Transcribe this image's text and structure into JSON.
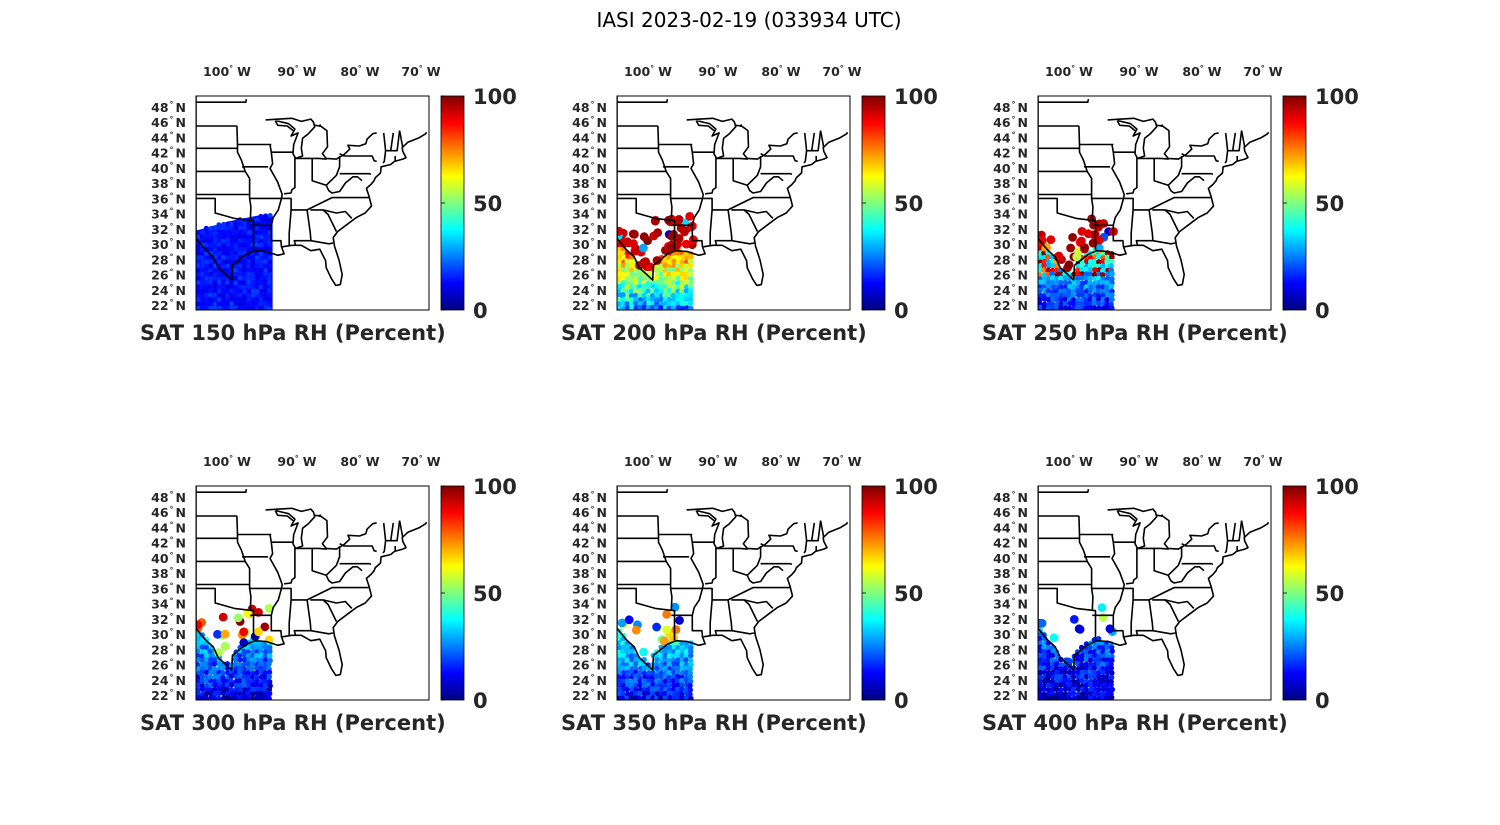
{
  "figure": {
    "title": "IASI 2023-02-19 (033934 UTC)"
  },
  "colors": {
    "jet_stops": [
      "#00007f",
      "#0000ff",
      "#007fff",
      "#00ffff",
      "#7fff7f",
      "#ffff00",
      "#ff7f00",
      "#ff0000",
      "#7f0000"
    ],
    "border": "#000000",
    "tick_text": "#262626"
  },
  "axes": {
    "lon_ticks": [
      {
        "value": -100,
        "label": "100",
        "suffix": "W"
      },
      {
        "value": -90,
        "label": "90",
        "suffix": "W"
      },
      {
        "value": -80,
        "label": "80",
        "suffix": "W"
      },
      {
        "value": -70,
        "label": "70",
        "suffix": "W"
      }
    ],
    "lat_ticks": [
      {
        "value": 48,
        "label": "48",
        "suffix": "N"
      },
      {
        "value": 46,
        "label": "46",
        "suffix": "N"
      },
      {
        "value": 44,
        "label": "44",
        "suffix": "N"
      },
      {
        "value": 42,
        "label": "42",
        "suffix": "N"
      },
      {
        "value": 40,
        "label": "40",
        "suffix": "N"
      },
      {
        "value": 38,
        "label": "38",
        "suffix": "N"
      },
      {
        "value": 36,
        "label": "36",
        "suffix": "N"
      },
      {
        "value": 34,
        "label": "34",
        "suffix": "N"
      },
      {
        "value": 32,
        "label": "32",
        "suffix": "N"
      },
      {
        "value": 30,
        "label": "30",
        "suffix": "N"
      },
      {
        "value": 28,
        "label": "28",
        "suffix": "N"
      },
      {
        "value": 26,
        "label": "26",
        "suffix": "N"
      },
      {
        "value": 24,
        "label": "24",
        "suffix": "N"
      },
      {
        "value": 22,
        "label": "22",
        "suffix": "N"
      }
    ],
    "colorbar_ticks": [
      {
        "value": 100,
        "label": "100"
      },
      {
        "value": 50,
        "label": "50"
      },
      {
        "value": 0,
        "label": "0"
      }
    ]
  },
  "panels": [
    {
      "title": "SAT 150 hPa RH (Percent)",
      "level": 150,
      "wet_fraction": 0.0,
      "mid_fraction": 0.0,
      "base_rh": 14,
      "land_points": 0
    },
    {
      "title": "SAT 200 hPa RH (Percent)",
      "level": 200,
      "wet_fraction": 0.85,
      "mid_fraction": 0.1,
      "base_rh": 40,
      "land_points": 70
    },
    {
      "title": "SAT 250 hPa RH (Percent)",
      "level": 250,
      "wet_fraction": 0.8,
      "mid_fraction": 0.15,
      "base_rh": 35,
      "land_points": 45
    },
    {
      "title": "SAT 300 hPa RH (Percent)",
      "level": 300,
      "wet_fraction": 0.25,
      "mid_fraction": 0.6,
      "base_rh": 25,
      "land_points": 35
    },
    {
      "title": "SAT 350 hPa RH (Percent)",
      "level": 350,
      "wet_fraction": 0.0,
      "mid_fraction": 0.55,
      "base_rh": 30,
      "land_points": 18
    },
    {
      "title": "SAT 400 hPa RH (Percent)",
      "level": 400,
      "wet_fraction": 0.0,
      "mid_fraction": 0.1,
      "base_rh": 18,
      "land_points": 12
    }
  ]
}
